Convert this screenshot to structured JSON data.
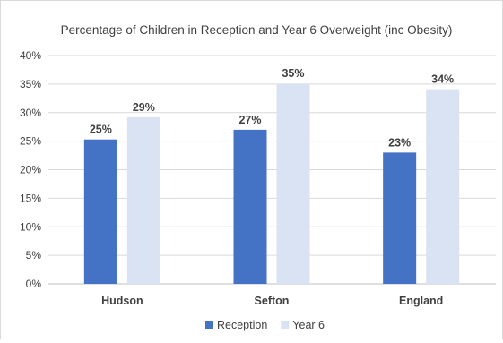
{
  "chart_data": {
    "type": "bar",
    "title": "Percentage of Children in Reception and Year 6 Overweight (inc Obesity)",
    "categories": [
      "Hudson",
      "Sefton",
      "England"
    ],
    "series": [
      {
        "name": "Reception",
        "values": [
          25.3,
          27.0,
          23.0
        ],
        "labels": [
          "25%",
          "27%",
          "23%"
        ],
        "color": "#4472c4"
      },
      {
        "name": "Year 6",
        "values": [
          29.2,
          35.1,
          34.1
        ],
        "labels": [
          "29%",
          "35%",
          "34%"
        ],
        "color": "#dae3f3"
      }
    ],
    "ylim": [
      0,
      40
    ],
    "yticks": [
      "0%",
      "5%",
      "10%",
      "15%",
      "20%",
      "25%",
      "30%",
      "35%",
      "40%"
    ],
    "grid": true,
    "legend_position": "bottom"
  }
}
